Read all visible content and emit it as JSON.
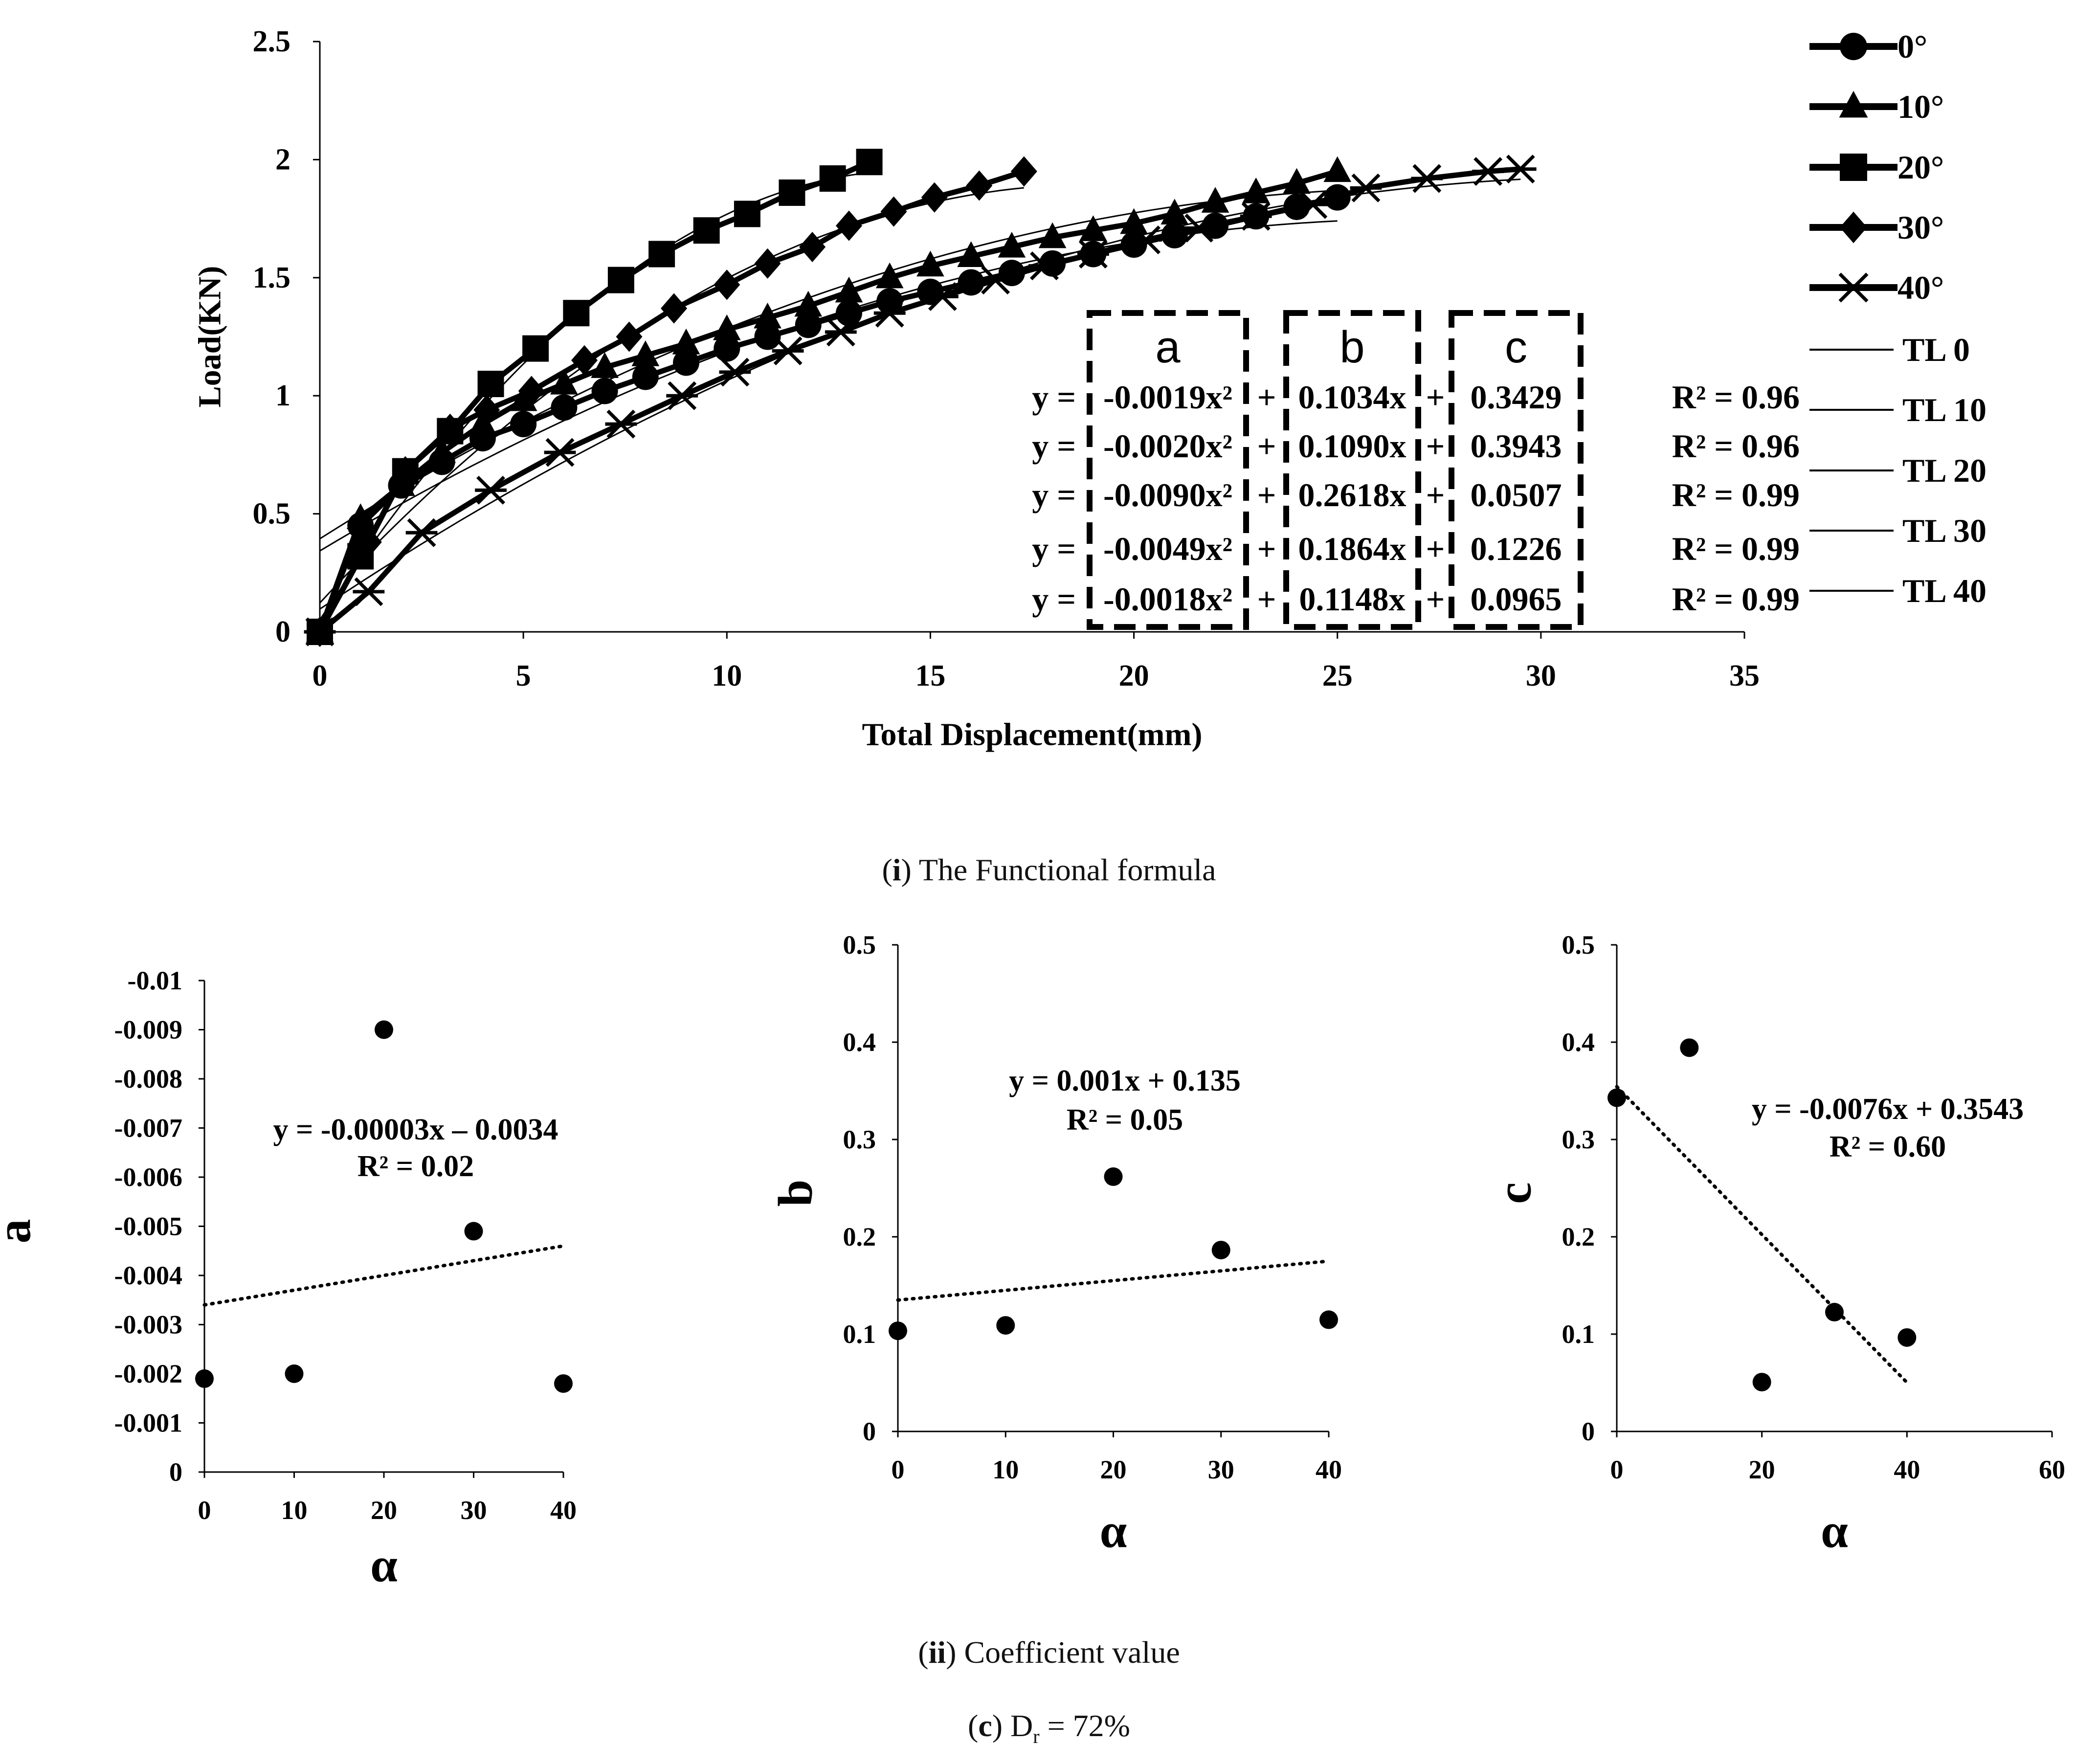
{
  "captions": {
    "main_prefix": "i",
    "main_text": "The Functional formula",
    "coef_prefix": "ii",
    "coef_text": "Coefficient value",
    "panel_prefix": "c",
    "panel_text_a": "D",
    "panel_sub": "r",
    "panel_text_b": " = 72%"
  },
  "colors": {
    "ink": "#000000",
    "background": "#ffffff"
  },
  "chart_data": [
    {
      "type": "line",
      "title": "",
      "xlabel": "Total Displacement(mm)",
      "ylabel": "Load(KN)",
      "xlim": [
        0,
        35
      ],
      "ylim": [
        0,
        2.5
      ],
      "xticks": [
        0,
        5,
        10,
        15,
        20,
        25,
        30,
        35
      ],
      "yticks": [
        0,
        0.5,
        1,
        1.5,
        2,
        2.5
      ],
      "xtick_labels": [
        "0",
        "5",
        "10",
        "15",
        "20",
        "25",
        "30",
        "35"
      ],
      "ytick_labels": [
        "0",
        "0.5",
        "1",
        "1.5",
        "2",
        "2.5"
      ],
      "legend_position": "right",
      "series": [
        {
          "name": "0°",
          "marker": "circle",
          "x": [
            0,
            1,
            2,
            3,
            4,
            5,
            6,
            7,
            8,
            9,
            10,
            11,
            12,
            13,
            14,
            15,
            16,
            17,
            18,
            19,
            20,
            21,
            22,
            23,
            24,
            25
          ],
          "y": [
            0,
            0.45,
            0.62,
            0.72,
            0.82,
            0.88,
            0.95,
            1.02,
            1.08,
            1.14,
            1.2,
            1.25,
            1.3,
            1.35,
            1.4,
            1.44,
            1.48,
            1.52,
            1.56,
            1.6,
            1.64,
            1.68,
            1.72,
            1.76,
            1.8,
            1.84
          ]
        },
        {
          "name": "10°",
          "marker": "triangle",
          "x": [
            0,
            1,
            2,
            3,
            4,
            5,
            6,
            7,
            8,
            9,
            10,
            11,
            12,
            13,
            14,
            15,
            16,
            17,
            18,
            19,
            20,
            21,
            22,
            23,
            24,
            25
          ],
          "y": [
            0,
            0.48,
            0.62,
            0.76,
            0.88,
            0.98,
            1.05,
            1.12,
            1.17,
            1.22,
            1.28,
            1.33,
            1.38,
            1.44,
            1.5,
            1.55,
            1.59,
            1.63,
            1.67,
            1.7,
            1.73,
            1.77,
            1.82,
            1.86,
            1.9,
            1.95
          ]
        },
        {
          "name": "20°",
          "marker": "square",
          "x": [
            0,
            1,
            2.1,
            3.2,
            4.2,
            5.3,
            6.3,
            7.4,
            8.4,
            9.5,
            10.5,
            11.6,
            12.6,
            13.5
          ],
          "y": [
            0,
            0.32,
            0.68,
            0.85,
            1.05,
            1.2,
            1.35,
            1.49,
            1.6,
            1.7,
            1.77,
            1.86,
            1.92,
            1.99
          ]
        },
        {
          "name": "30°",
          "marker": "diamond",
          "x": [
            0,
            1.2,
            2.1,
            3.2,
            4.1,
            5.2,
            6.5,
            7.6,
            8.7,
            10,
            11,
            12.1,
            13,
            14.1,
            15.1,
            16.2,
            17.3
          ],
          "y": [
            0,
            0.38,
            0.68,
            0.86,
            0.94,
            1.02,
            1.15,
            1.25,
            1.37,
            1.47,
            1.56,
            1.63,
            1.72,
            1.78,
            1.84,
            1.89,
            1.95
          ]
        },
        {
          "name": "40°",
          "marker": "star",
          "x": [
            0,
            1.2,
            2.5,
            4.2,
            5.9,
            7.4,
            8.9,
            10.2,
            11.5,
            12.8,
            14,
            15.3,
            16.6,
            17.8,
            19,
            20.3,
            21.6,
            23,
            24.4,
            25.7,
            27.2,
            28.7,
            29.5
          ],
          "y": [
            0,
            0.17,
            0.42,
            0.6,
            0.76,
            0.88,
            1.0,
            1.1,
            1.19,
            1.27,
            1.35,
            1.42,
            1.49,
            1.55,
            1.6,
            1.66,
            1.71,
            1.76,
            1.81,
            1.88,
            1.92,
            1.95,
            1.96
          ]
        },
        {
          "name": "TL 0",
          "marker": "none",
          "trend": [
            -0.0019,
            0.1034,
            0.3429
          ],
          "xrange": [
            0,
            25
          ]
        },
        {
          "name": "TL 10",
          "marker": "none",
          "trend": [
            -0.002,
            0.109,
            0.3943
          ],
          "xrange": [
            0,
            25
          ]
        },
        {
          "name": "TL 20",
          "marker": "none",
          "trend": [
            -0.009,
            0.2618,
            0.0507
          ],
          "xrange": [
            0,
            13.5
          ]
        },
        {
          "name": "TL 30",
          "marker": "none",
          "trend": [
            -0.0049,
            0.1864,
            0.1226
          ],
          "xrange": [
            0,
            17.3
          ]
        },
        {
          "name": "TL 40",
          "marker": "none",
          "trend": [
            -0.0018,
            0.1148,
            0.0965
          ],
          "xrange": [
            0,
            29.5
          ]
        }
      ],
      "coef_box_labels": [
        "a",
        "b",
        "c"
      ],
      "equations": [
        {
          "y": "y = ",
          "a": "-0.0019x²",
          "p1": " + ",
          "b": "0.1034x",
          "p2": " + ",
          "c": "0.3429",
          "r2": "R² = 0.96"
        },
        {
          "y": "y = ",
          "a": "-0.0020x²",
          "p1": " + ",
          "b": "0.1090x",
          "p2": " + ",
          "c": "0.3943",
          "r2": "R² = 0.96"
        },
        {
          "y": "y = ",
          "a": "-0.0090x²",
          "p1": " + ",
          "b": "0.2618x",
          "p2": " + ",
          "c": "0.0507",
          "r2": "R² = 0.99"
        },
        {
          "y": "y = ",
          "a": "-0.0049x²",
          "p1": " + ",
          "b": "0.1864x",
          "p2": " + ",
          "c": "0.1226",
          "r2": "R² = 0.99"
        },
        {
          "y": "y = ",
          "a": "-0.0018x²",
          "p1": " + ",
          "b": "0.1148x",
          "p2": " + ",
          "c": "0.0965",
          "r2": "R² = 0.99"
        }
      ]
    },
    {
      "type": "scatter",
      "title": "",
      "xlabel": "α",
      "ylabel": "a",
      "xlim": [
        0,
        40
      ],
      "ylim": [
        0,
        -0.01
      ],
      "reversed_y": true,
      "xticks": [
        0,
        10,
        20,
        30,
        40
      ],
      "xtick_labels": [
        "0",
        "10",
        "20",
        "30",
        "40"
      ],
      "yticks": [
        0,
        -0.001,
        -0.002,
        -0.003,
        -0.004,
        -0.005,
        -0.006,
        -0.007,
        -0.008,
        -0.009,
        -0.01
      ],
      "ytick_labels": [
        "0",
        "-0.001",
        "-0.002",
        "-0.003",
        "-0.004",
        "-0.005",
        "-0.006",
        "-0.007",
        "-0.008",
        "-0.009",
        "-0.01"
      ],
      "x": [
        0,
        10,
        20,
        30,
        40
      ],
      "y": [
        -0.0019,
        -0.002,
        -0.009,
        -0.0049,
        -0.0018
      ],
      "trendline": {
        "slope": -3e-05,
        "intercept": -0.0034,
        "xrange": [
          0,
          40
        ]
      },
      "equation": "y = -0.00003x – 0.0034",
      "r2": "R² = 0.02"
    },
    {
      "type": "scatter",
      "title": "",
      "xlabel": "α",
      "ylabel": "b",
      "xlim": [
        0,
        40
      ],
      "ylim": [
        0,
        0.5
      ],
      "xticks": [
        0,
        10,
        20,
        30,
        40
      ],
      "xtick_labels": [
        "0",
        "10",
        "20",
        "30",
        "40"
      ],
      "yticks": [
        0,
        0.1,
        0.2,
        0.3,
        0.4,
        0.5
      ],
      "ytick_labels": [
        "0",
        "0.1",
        "0.2",
        "0.3",
        "0.4",
        "0.5"
      ],
      "x": [
        0,
        10,
        20,
        30,
        40
      ],
      "y": [
        0.1034,
        0.109,
        0.2618,
        0.1864,
        0.1148
      ],
      "trendline": {
        "slope": 0.001,
        "intercept": 0.135,
        "xrange": [
          0,
          40
        ]
      },
      "equation": "y = 0.001x + 0.135",
      "r2": "R² = 0.05"
    },
    {
      "type": "scatter",
      "title": "",
      "xlabel": "α",
      "ylabel": "c",
      "xlim": [
        0,
        60
      ],
      "ylim": [
        0,
        0.5
      ],
      "xticks": [
        0,
        20,
        40,
        60
      ],
      "xtick_labels": [
        "0",
        "20",
        "40",
        "60"
      ],
      "yticks": [
        0,
        0.1,
        0.2,
        0.3,
        0.4,
        0.5
      ],
      "ytick_labels": [
        "0",
        "0.1",
        "0.2",
        "0.3",
        "0.4",
        "0.5"
      ],
      "x": [
        0,
        10,
        20,
        30,
        40
      ],
      "y": [
        0.3429,
        0.3943,
        0.0507,
        0.1226,
        0.0965
      ],
      "trendline": {
        "slope": -0.0076,
        "intercept": 0.3543,
        "xrange": [
          0,
          40
        ]
      },
      "equation": "y = -0.0076x + 0.3543",
      "r2": "R² = 0.60"
    }
  ]
}
